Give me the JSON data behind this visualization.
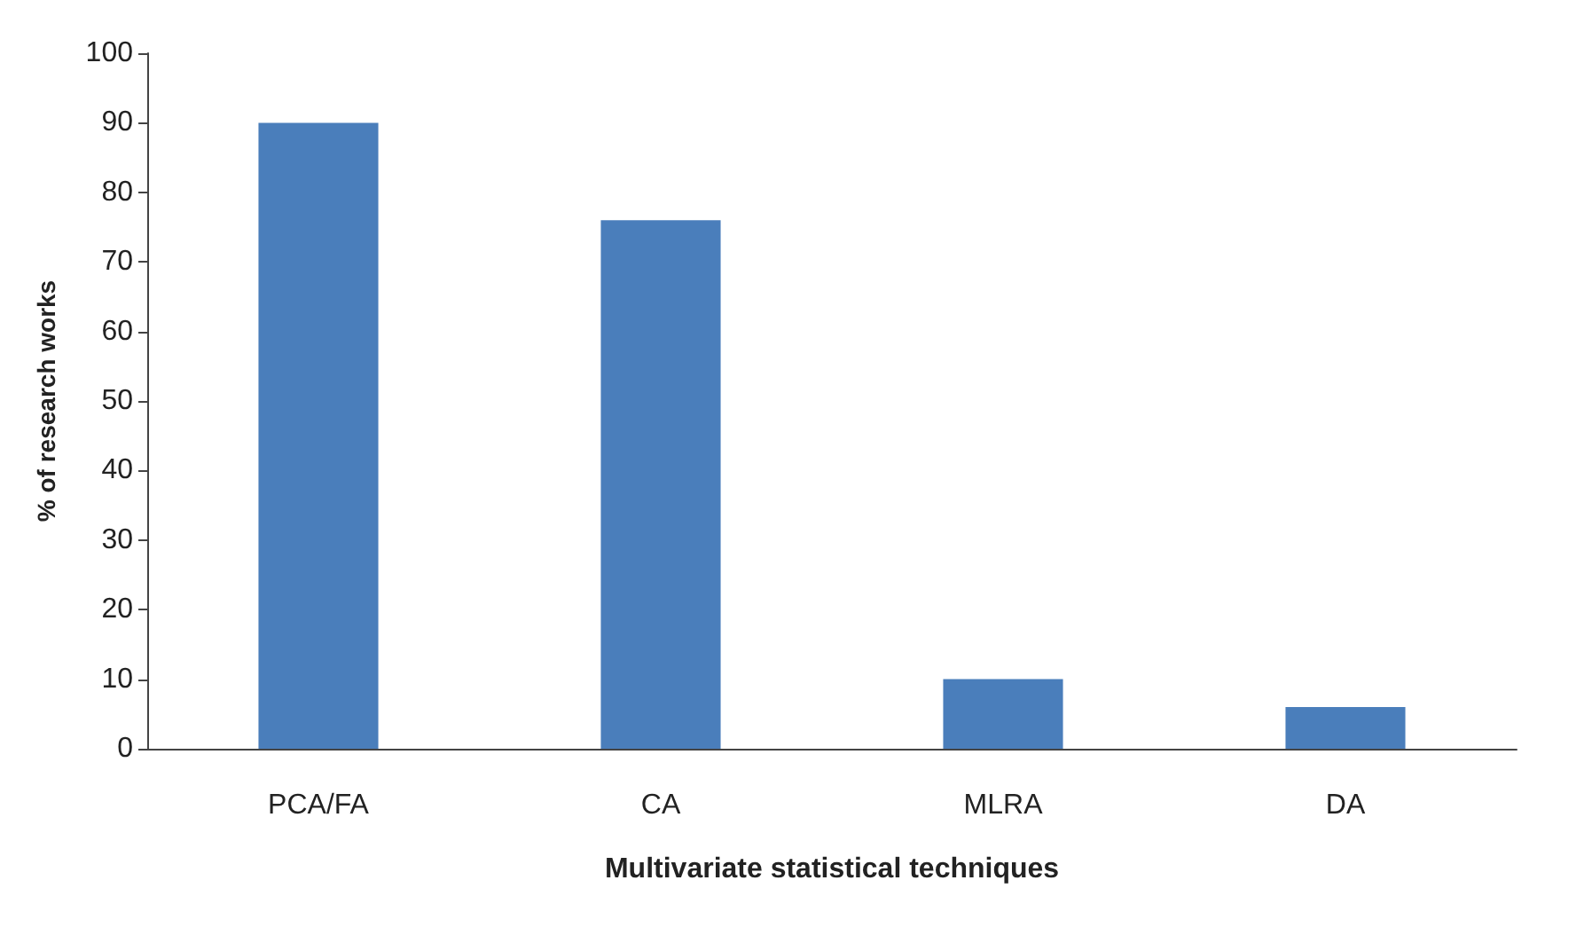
{
  "chart_data": {
    "type": "bar",
    "xlabel": "Multivariate statistical techniques",
    "ylabel": "% of research works",
    "categories": [
      "PCA/FA",
      "CA",
      "MLRA",
      "DA"
    ],
    "values": [
      90,
      76,
      10,
      6
    ],
    "color": "#4a7ebb",
    "ylim": [
      0,
      100
    ],
    "yticks": [
      0,
      10,
      20,
      30,
      40,
      50,
      60,
      70,
      80,
      90,
      100
    ],
    "grid": false
  }
}
